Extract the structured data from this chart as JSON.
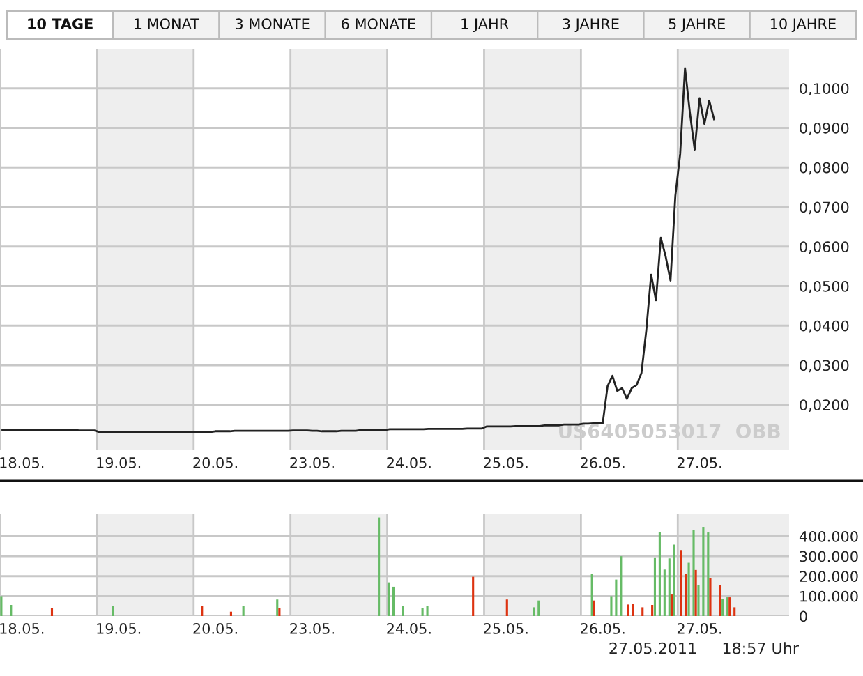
{
  "chart_data": [
    {
      "type": "line",
      "annotations": [
        "US6405053017  OBB",
        "10 TAGE",
        "1 MONAT",
        "3 MONATE",
        "6 MONATE",
        "1 JAHR",
        "3 JAHRE",
        "5 JAHRE",
        "10 JAHRE"
      ],
      "categories": [
        null,
        null,
        null,
        null,
        "18.05.",
        null,
        null,
        null,
        null,
        null,
        null,
        null,
        null,
        null,
        null,
        null,
        null,
        null,
        null,
        null,
        null,
        null,
        null,
        null,
        "19.05.",
        null,
        null,
        null,
        null,
        null,
        null,
        null,
        null,
        null,
        null,
        null,
        null,
        null,
        null,
        null,
        null,
        null,
        null,
        null,
        "20.05.",
        null,
        null,
        null,
        null,
        null,
        null,
        null,
        null,
        null,
        null,
        null,
        null,
        null,
        null,
        null,
        null,
        null,
        null,
        null,
        "23.05.",
        null,
        null,
        null,
        null,
        null,
        null,
        null,
        null,
        null,
        null,
        null,
        null,
        null,
        null,
        null,
        null,
        null,
        null,
        null,
        "24.05.",
        null,
        null,
        null,
        null,
        null,
        null,
        null,
        null,
        null,
        null,
        null,
        null,
        null,
        null,
        null,
        null,
        null,
        null,
        null,
        "25.05.",
        null,
        null,
        null,
        null,
        null,
        null,
        null,
        null,
        null,
        null,
        null,
        null,
        null,
        null,
        null,
        null,
        null,
        null,
        null,
        "26.05.",
        null,
        null,
        null,
        null,
        null,
        null,
        null,
        null,
        null,
        null,
        null,
        null,
        null,
        null,
        null,
        null,
        null,
        null,
        null,
        "27.05.",
        null,
        null,
        null,
        null,
        null,
        null,
        null,
        null,
        null,
        null,
        null,
        null,
        null,
        null,
        null,
        null,
        null,
        null
      ],
      "series": [
        {
          "color": "#222222",
          "values": [
            0.0137,
            0.0137,
            0.0137,
            0.0137,
            0.0137,
            0.0137,
            0.0137,
            0.0137,
            0.0137,
            0.0137,
            0.0136,
            0.0136,
            0.0136,
            0.0136,
            0.0136,
            0.0136,
            0.0135,
            0.0135,
            0.0135,
            0.0135,
            0.0131,
            0.0131,
            0.0131,
            0.0131,
            0.0131,
            0.0131,
            0.0131,
            0.0131,
            0.0131,
            0.0131,
            0.0131,
            0.0131,
            0.0131,
            0.0131,
            0.0131,
            0.0131,
            0.0131,
            0.0131,
            0.0131,
            0.0131,
            0.0131,
            0.0131,
            0.0131,
            0.0131,
            0.0133,
            0.0133,
            0.0133,
            0.0133,
            0.0134,
            0.0134,
            0.0134,
            0.0134,
            0.0134,
            0.0134,
            0.0134,
            0.0134,
            0.0134,
            0.0134,
            0.0134,
            0.0134,
            0.0135,
            0.0135,
            0.0135,
            0.0135,
            0.0134,
            0.0134,
            0.0133,
            0.0133,
            0.0133,
            0.0133,
            0.0134,
            0.0134,
            0.0134,
            0.0134,
            0.0136,
            0.0136,
            0.0136,
            0.0136,
            0.0136,
            0.0136,
            0.0138,
            0.0138,
            0.0138,
            0.0138,
            0.0138,
            0.0138,
            0.0138,
            0.0138,
            0.0139,
            0.0139,
            0.0139,
            0.0139,
            0.0139,
            0.0139,
            0.0139,
            0.0139,
            0.014,
            0.014,
            0.014,
            0.014,
            0.0145,
            0.0145,
            0.0145,
            0.0145,
            0.0145,
            0.0145,
            0.0146,
            0.0146,
            0.0146,
            0.0146,
            0.0146,
            0.0146,
            0.0148,
            0.0148,
            0.0148,
            0.0148,
            0.015,
            0.015,
            0.015,
            0.015,
            0.0152,
            0.0152,
            0.0153,
            0.0153,
            0.0153,
            0.0247,
            0.0273,
            0.0235,
            0.0242,
            0.0215,
            0.0242,
            0.025,
            0.028,
            0.0388,
            0.0529,
            0.0464,
            0.0622,
            0.0575,
            0.0514,
            0.0728,
            0.0834,
            0.1051,
            0.0939,
            0.0845,
            0.0975,
            0.091,
            0.0969,
            0.0922,
            null,
            null,
            null,
            null,
            null,
            null,
            null,
            null,
            null,
            null,
            null,
            null,
            null,
            null,
            null
          ]
        }
      ],
      "ylim": [
        0.0085,
        0.11
      ],
      "yticks": [
        {
          "value": 0.02,
          "label": "0,0200"
        },
        {
          "value": 0.03,
          "label": "0,0300"
        },
        {
          "value": 0.04,
          "label": "0,0400"
        },
        {
          "value": 0.05,
          "label": "0,0500"
        },
        {
          "value": 0.06,
          "label": "0,0600"
        },
        {
          "value": 0.07,
          "label": "0,0700"
        },
        {
          "value": 0.08,
          "label": "0,0800"
        },
        {
          "value": 0.09,
          "label": "0,0900"
        },
        {
          "value": 0.1,
          "label": "0,1000"
        }
      ],
      "grid": true
    },
    {
      "type": "bar",
      "annotations": [
        "27.05.2011     18:57 Uhr"
      ],
      "categories": [
        null,
        null,
        null,
        null,
        "18.05.",
        null,
        null,
        null,
        null,
        null,
        null,
        null,
        null,
        null,
        null,
        null,
        null,
        null,
        null,
        null,
        null,
        null,
        null,
        null,
        "19.05.",
        null,
        null,
        null,
        null,
        null,
        null,
        null,
        null,
        null,
        null,
        null,
        null,
        null,
        null,
        null,
        null,
        null,
        null,
        null,
        "20.05.",
        null,
        null,
        null,
        null,
        null,
        null,
        null,
        null,
        null,
        null,
        null,
        null,
        null,
        null,
        null,
        null,
        null,
        null,
        null,
        "23.05.",
        null,
        null,
        null,
        null,
        null,
        null,
        null,
        null,
        null,
        null,
        null,
        null,
        null,
        null,
        null,
        null,
        null,
        null,
        null,
        "24.05.",
        null,
        null,
        null,
        null,
        null,
        null,
        null,
        null,
        null,
        null,
        null,
        null,
        null,
        null,
        null,
        null,
        null,
        null,
        null,
        "25.05.",
        null,
        null,
        null,
        null,
        null,
        null,
        null,
        null,
        null,
        null,
        null,
        null,
        null,
        null,
        null,
        null,
        null,
        null,
        null,
        "26.05.",
        null,
        null,
        null,
        null,
        null,
        null,
        null,
        null,
        null,
        null,
        null,
        null,
        null,
        null,
        null,
        null,
        null,
        null,
        null,
        "27.05.",
        null,
        null,
        null,
        null,
        null,
        null,
        null,
        null,
        null,
        null,
        null,
        null,
        null,
        null,
        null,
        null,
        null,
        null
      ],
      "series": [
        {
          "color": "#66bb66",
          "values": [
            100000,
            null,
            56000,
            null,
            null,
            null,
            null,
            null,
            null,
            null,
            null,
            null,
            null,
            null,
            null,
            null,
            null,
            null,
            null,
            null,
            null,
            null,
            null,
            50000,
            null,
            null,
            null,
            null,
            null,
            null,
            null,
            null,
            null,
            null,
            null,
            null,
            null,
            null,
            null,
            null,
            null,
            null,
            null,
            null,
            null,
            null,
            null,
            null,
            null,
            null,
            50000,
            null,
            null,
            null,
            null,
            null,
            null,
            83000,
            null,
            null,
            null,
            null,
            null,
            null,
            null,
            null,
            null,
            null,
            null,
            null,
            null,
            null,
            null,
            null,
            null,
            null,
            null,
            null,
            494000,
            null,
            169000,
            147000,
            null,
            50000,
            null,
            null,
            null,
            39000,
            50000,
            null,
            null,
            null,
            null,
            null,
            null,
            null,
            null,
            null,
            null,
            null,
            null,
            null,
            null,
            null,
            null,
            null,
            null,
            null,
            null,
            null,
            44000,
            78000,
            null,
            null,
            null,
            null,
            null,
            null,
            null,
            null,
            null,
            null,
            211000,
            null,
            null,
            null,
            100000,
            183000,
            300000,
            null,
            null,
            null,
            null,
            null,
            null,
            294000,
            422000,
            233000,
            289000,
            358000,
            null,
            null,
            267000,
            433000,
            156000,
            447000,
            419000,
            null,
            null,
            86000,
            94000,
            null,
            null,
            null,
            null,
            null,
            null,
            null,
            null,
            null,
            null,
            null,
            null
          ]
        },
        {
          "color": "#dd3311",
          "values": [
            null,
            null,
            null,
            null,
            null,
            null,
            null,
            null,
            null,
            null,
            39000,
            null,
            null,
            null,
            null,
            null,
            null,
            null,
            null,
            null,
            null,
            null,
            null,
            null,
            null,
            null,
            null,
            null,
            null,
            null,
            null,
            null,
            null,
            null,
            null,
            null,
            null,
            null,
            null,
            null,
            null,
            50000,
            null,
            null,
            null,
            null,
            null,
            22000,
            null,
            null,
            null,
            null,
            null,
            null,
            null,
            null,
            null,
            39000,
            null,
            null,
            null,
            null,
            null,
            null,
            null,
            null,
            null,
            null,
            null,
            null,
            null,
            null,
            null,
            null,
            null,
            null,
            null,
            null,
            null,
            null,
            null,
            null,
            null,
            null,
            null,
            null,
            null,
            null,
            null,
            null,
            null,
            null,
            null,
            null,
            null,
            null,
            null,
            197000,
            null,
            null,
            null,
            null,
            null,
            null,
            83000,
            null,
            null,
            null,
            null,
            null,
            null,
            null,
            null,
            null,
            null,
            null,
            null,
            null,
            null,
            null,
            null,
            null,
            78000,
            null,
            null,
            null,
            null,
            null,
            null,
            58000,
            61000,
            null,
            44000,
            null,
            56000,
            null,
            null,
            null,
            108000,
            null,
            331000,
            211000,
            null,
            231000,
            null,
            null,
            189000,
            null,
            156000,
            null,
            94000,
            44000,
            null,
            null,
            null,
            null,
            null,
            null,
            null,
            null,
            null,
            null,
            null
          ]
        }
      ],
      "ylim": [
        0,
        510000
      ],
      "yticks": [
        {
          "value": 0,
          "label": "0"
        },
        {
          "value": 100000,
          "label": "100.000"
        },
        {
          "value": 200000,
          "label": "200.000"
        },
        {
          "value": 300000,
          "label": "300.000"
        },
        {
          "value": 400000,
          "label": "400.000"
        }
      ],
      "grid": true
    }
  ]
}
